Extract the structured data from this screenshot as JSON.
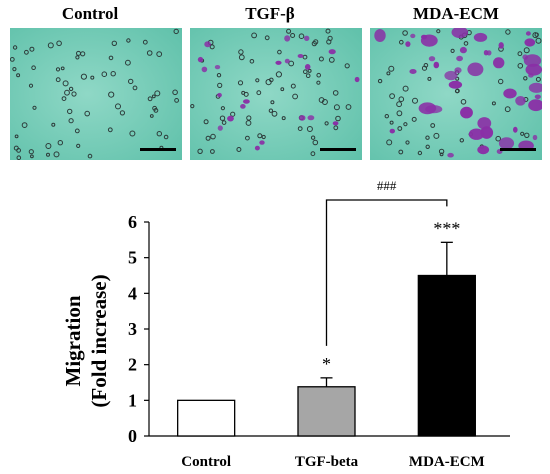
{
  "panels": [
    {
      "title": "Control",
      "stain": "low"
    },
    {
      "title": "TGF-β",
      "stain": "medium"
    },
    {
      "title": "MDA-ECM",
      "stain": "high"
    }
  ],
  "colors": {
    "micro_bg": "#5cbfa8",
    "micro_bg_light": "#8fd8c6",
    "cell_purple": "#8a2fa6",
    "scale_bar": "#000000"
  },
  "chart_data": {
    "type": "bar",
    "categories": [
      "Control",
      "TGF-beta",
      "MDA-ECM"
    ],
    "values": [
      1.0,
      1.38,
      4.5
    ],
    "errors": [
      0,
      0.25,
      0.93
    ],
    "bar_colors": [
      "#ffffff",
      "#a6a6a6",
      "#000000"
    ],
    "significance": [
      "",
      "*",
      "***"
    ],
    "comparison": {
      "from": "TGF-beta",
      "to": "MDA-ECM",
      "label": "###"
    },
    "ylabel_line1": "Migration",
    "ylabel_line2": "(Fold increase)",
    "ylim": [
      0,
      6
    ],
    "yticks": [
      "0",
      "1",
      "2",
      "3",
      "4",
      "5",
      "6"
    ]
  }
}
